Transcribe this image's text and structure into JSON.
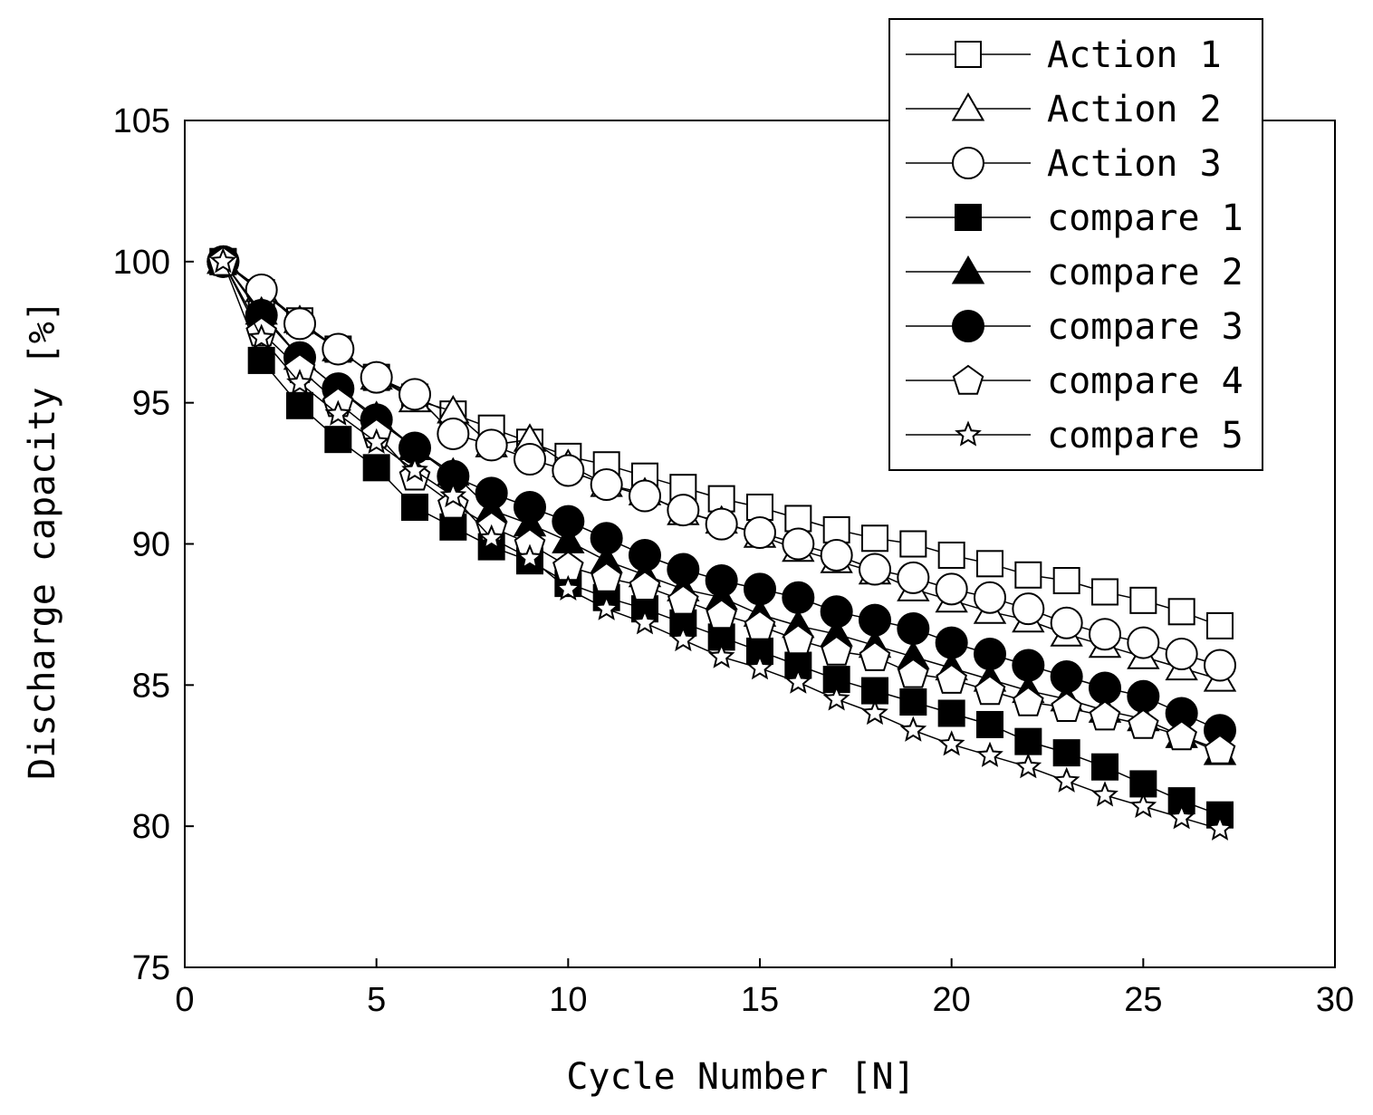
{
  "chart_data": {
    "type": "line",
    "xlabel": "Cycle Number [N]",
    "ylabel": "Discharge capacity [%]",
    "xlim": [
      0,
      30
    ],
    "ylim": [
      75,
      105
    ],
    "xticks": [
      0,
      5,
      10,
      15,
      20,
      25,
      30
    ],
    "yticks": [
      75,
      80,
      85,
      90,
      95,
      100,
      105
    ],
    "grid": false,
    "legend_position": "top-right",
    "x": [
      1,
      2,
      3,
      4,
      5,
      6,
      7,
      8,
      9,
      10,
      11,
      12,
      13,
      14,
      15,
      16,
      17,
      18,
      19,
      20,
      21,
      22,
      23,
      24,
      25,
      26,
      27
    ],
    "series": [
      {
        "name": "Action 1",
        "marker": "square-open",
        "values": [
          100,
          98.9,
          97.9,
          96.9,
          95.9,
          95.2,
          94.6,
          94.1,
          93.6,
          93.1,
          92.8,
          92.4,
          92.0,
          91.6,
          91.3,
          90.9,
          90.5,
          90.2,
          90.0,
          89.6,
          89.3,
          88.9,
          88.7,
          88.3,
          88.0,
          87.6,
          87.1
        ]
      },
      {
        "name": "Action 2",
        "marker": "triangle-open",
        "values": [
          100,
          99.0,
          97.9,
          96.9,
          95.9,
          95.1,
          94.7,
          93.5,
          93.7,
          92.8,
          92.1,
          91.8,
          91.1,
          90.8,
          90.3,
          89.8,
          89.4,
          89.0,
          88.4,
          88.0,
          87.6,
          87.3,
          86.8,
          86.4,
          86.0,
          85.6,
          85.2
        ]
      },
      {
        "name": "Action 3",
        "marker": "circle-open",
        "values": [
          100,
          99.0,
          97.8,
          96.9,
          95.9,
          95.3,
          93.9,
          93.5,
          93.0,
          92.6,
          92.1,
          91.7,
          91.2,
          90.7,
          90.4,
          90.0,
          89.6,
          89.1,
          88.8,
          88.4,
          88.1,
          87.7,
          87.2,
          86.8,
          86.5,
          86.1,
          85.7
        ]
      },
      {
        "name": "compare 1",
        "marker": "square-filled",
        "values": [
          100,
          96.5,
          94.9,
          93.7,
          92.7,
          91.3,
          90.6,
          89.9,
          89.4,
          88.6,
          88.1,
          87.7,
          87.2,
          86.7,
          86.2,
          85.7,
          85.2,
          84.8,
          84.4,
          84.0,
          83.6,
          83.0,
          82.6,
          82.1,
          81.5,
          80.9,
          80.4
        ]
      },
      {
        "name": "compare 2",
        "marker": "triangle-filled",
        "values": [
          100,
          98.2,
          96.6,
          95.5,
          94.5,
          93.4,
          92.5,
          91.2,
          90.7,
          90.1,
          89.4,
          88.9,
          88.4,
          88.1,
          87.5,
          87.1,
          86.8,
          86.4,
          86.0,
          85.6,
          85.2,
          84.8,
          84.5,
          84.1,
          83.8,
          83.2,
          82.6
        ]
      },
      {
        "name": "compare 3",
        "marker": "circle-filled",
        "values": [
          100,
          98.1,
          96.6,
          95.5,
          94.4,
          93.4,
          92.4,
          91.8,
          91.3,
          90.8,
          90.2,
          89.6,
          89.1,
          88.7,
          88.4,
          88.1,
          87.6,
          87.3,
          87.0,
          86.5,
          86.1,
          85.7,
          85.3,
          84.9,
          84.6,
          84.0,
          83.4
        ]
      },
      {
        "name": "compare 4",
        "marker": "pentagon-open",
        "values": [
          100,
          97.5,
          96.2,
          95.0,
          93.9,
          92.4,
          91.4,
          90.6,
          90.0,
          89.2,
          88.8,
          88.5,
          88.0,
          87.5,
          87.1,
          86.6,
          86.2,
          86.0,
          85.4,
          85.2,
          84.8,
          84.4,
          84.2,
          83.9,
          83.6,
          83.2,
          82.7
        ]
      },
      {
        "name": "compare 5",
        "marker": "star-open",
        "values": [
          100,
          97.3,
          95.7,
          94.6,
          93.6,
          92.6,
          91.7,
          90.2,
          89.5,
          88.4,
          87.7,
          87.2,
          86.6,
          86.0,
          85.6,
          85.1,
          84.5,
          84.0,
          83.4,
          82.9,
          82.5,
          82.1,
          81.6,
          81.1,
          80.7,
          80.3,
          79.9
        ]
      }
    ]
  }
}
